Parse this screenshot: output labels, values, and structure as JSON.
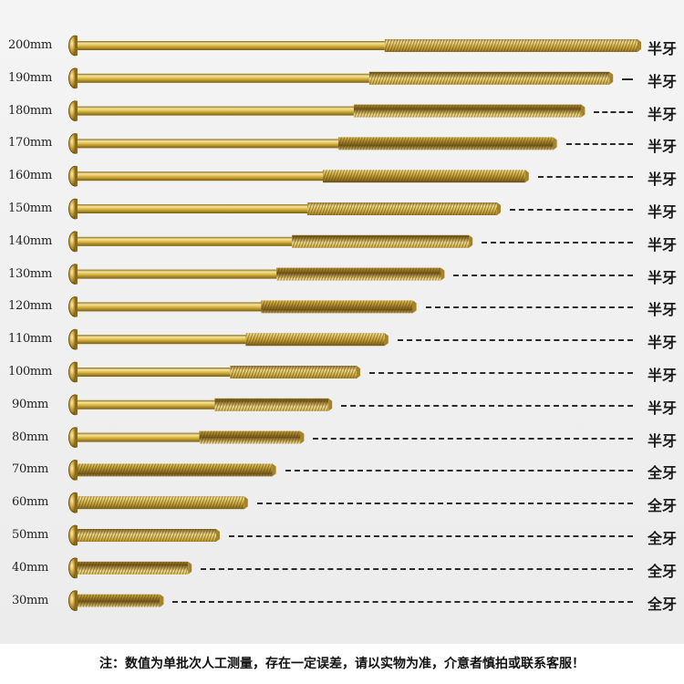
{
  "screws": [
    {
      "length": "200mm",
      "type": "半牙",
      "thread": "half"
    },
    {
      "length": "190mm",
      "type": "半牙",
      "thread": "half"
    },
    {
      "length": "180mm",
      "type": "半牙",
      "thread": "half"
    },
    {
      "length": "170mm",
      "type": "半牙",
      "thread": "half"
    },
    {
      "length": "160mm",
      "type": "半牙",
      "thread": "half"
    },
    {
      "length": "150mm",
      "type": "半牙",
      "thread": "half"
    },
    {
      "length": "140mm",
      "type": "半牙",
      "thread": "half"
    },
    {
      "length": "130mm",
      "type": "半牙",
      "thread": "half"
    },
    {
      "length": "120mm",
      "type": "半牙",
      "thread": "half"
    },
    {
      "length": "110mm",
      "type": "半牙",
      "thread": "half"
    },
    {
      "length": "100mm",
      "type": "半牙",
      "thread": "half"
    },
    {
      "length": "90mm",
      "type": "半牙",
      "thread": "half"
    },
    {
      "length": "80mm",
      "type": "半牙",
      "thread": "half"
    },
    {
      "length": "70mm",
      "type": "全牙",
      "thread": "full"
    },
    {
      "length": "60mm",
      "type": "全牙",
      "thread": "full"
    },
    {
      "length": "50mm",
      "type": "全牙",
      "thread": "full"
    },
    {
      "length": "40mm",
      "type": "全牙",
      "thread": "full"
    },
    {
      "length": "30mm",
      "type": "全牙",
      "thread": "full"
    }
  ],
  "footer": {
    "note": "注：数值为单批次人工测量，存在一定误差，请以实物为准，介意者慎拍或联系客服！"
  },
  "colors": {
    "shank": "#d9b43e",
    "shank_highlight": "#f6e6a0",
    "shank_shadow": "#8a6a18",
    "thread": "#c9a63a",
    "thread_groove": "#7d6020",
    "head": "#b8912c"
  }
}
